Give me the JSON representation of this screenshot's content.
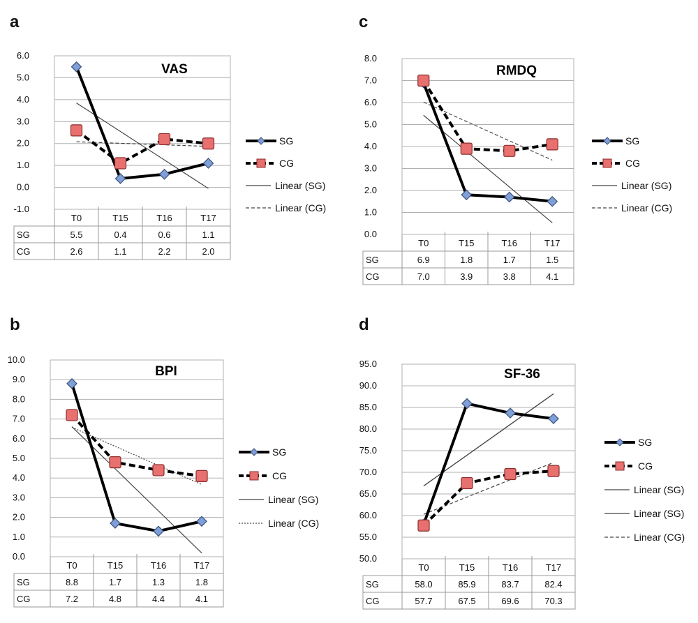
{
  "chart_data": [
    {
      "panel": "a",
      "type": "line",
      "title": "VAS",
      "categories": [
        "T0",
        "T15",
        "T16",
        "T17"
      ],
      "ylim": [
        -1.0,
        6.0
      ],
      "ytick_step": 1.0,
      "y_decimals": 1,
      "grid": true,
      "legend_position": "right",
      "series": [
        {
          "name": "SG",
          "values": [
            5.5,
            0.4,
            0.6,
            1.1
          ],
          "display": [
            "5.5",
            "0.4",
            "0.6",
            "1.1"
          ],
          "marker": "diamond",
          "color": "#7f9fd8"
        },
        {
          "name": "CG",
          "values": [
            2.6,
            1.1,
            2.2,
            2.0
          ],
          "display": [
            "2.6",
            "1.1",
            "2.2",
            "2.0"
          ],
          "marker": "square",
          "color": "#e8706e"
        }
      ],
      "trendlines": [
        {
          "name": "Linear (SG)",
          "style": "solid"
        },
        {
          "name": "Linear (CG)",
          "style": "dashed"
        }
      ]
    },
    {
      "panel": "b",
      "type": "line",
      "title": "BPI",
      "categories": [
        "T0",
        "T15",
        "T16",
        "T17"
      ],
      "ylim": [
        0.0,
        10.0
      ],
      "ytick_step": 1.0,
      "y_decimals": 1,
      "grid": true,
      "legend_position": "right",
      "series": [
        {
          "name": "SG",
          "values": [
            8.8,
            1.7,
            1.3,
            1.8
          ],
          "display": [
            "8.8",
            "1.7",
            "1.3",
            "1.8"
          ],
          "marker": "diamond",
          "color": "#7f9fd8"
        },
        {
          "name": "CG",
          "values": [
            7.2,
            4.8,
            4.4,
            4.1
          ],
          "display": [
            "7.2",
            "4.8",
            "4.4",
            "4.1"
          ],
          "marker": "square",
          "color": "#e8706e"
        }
      ],
      "trendlines": [
        {
          "name": "Linear (SG)",
          "style": "solid"
        },
        {
          "name": "Linear (CG)",
          "style": "dotted"
        }
      ]
    },
    {
      "panel": "c",
      "type": "line",
      "title": "RMDQ",
      "categories": [
        "T0",
        "T15",
        "T16",
        "T17"
      ],
      "ylim": [
        0.0,
        8.0
      ],
      "ytick_step": 1.0,
      "y_decimals": 1,
      "grid": true,
      "legend_position": "right",
      "series": [
        {
          "name": "SG",
          "values": [
            6.9,
            1.8,
            1.7,
            1.5
          ],
          "display": [
            "6.9",
            "1.8",
            "1.7",
            "1.5"
          ],
          "marker": "diamond",
          "color": "#7f9fd8"
        },
        {
          "name": "CG",
          "values": [
            7.0,
            3.9,
            3.8,
            4.1
          ],
          "display": [
            "7.0",
            "3.9",
            "3.8",
            "4.1"
          ],
          "marker": "square",
          "color": "#e8706e"
        }
      ],
      "trendlines": [
        {
          "name": "Linear (SG)",
          "style": "solid"
        },
        {
          "name": "Linear (CG)",
          "style": "dashed"
        }
      ]
    },
    {
      "panel": "d",
      "type": "line",
      "title": "SF-36",
      "categories": [
        "T0",
        "T15",
        "T16",
        "T17"
      ],
      "ylim": [
        50.0,
        95.0
      ],
      "ytick_step": 5.0,
      "y_decimals": 1,
      "grid": true,
      "legend_position": "right",
      "series": [
        {
          "name": "SG",
          "values": [
            58.0,
            85.9,
            83.7,
            82.4
          ],
          "display": [
            "58.0",
            "85.9",
            "83.7",
            "82.4"
          ],
          "marker": "diamond",
          "color": "#7f9fd8"
        },
        {
          "name": "CG",
          "values": [
            57.7,
            67.5,
            69.6,
            70.3
          ],
          "display": [
            "57.7",
            "67.5",
            "69.6",
            "70.3"
          ],
          "marker": "square",
          "color": "#e8706e"
        }
      ],
      "trendlines": [
        {
          "name": "Linear (SG)",
          "style": "solid"
        },
        {
          "name": "Linear (SG)",
          "style": "solid"
        },
        {
          "name": "Linear (CG)",
          "style": "dashed"
        }
      ]
    }
  ]
}
